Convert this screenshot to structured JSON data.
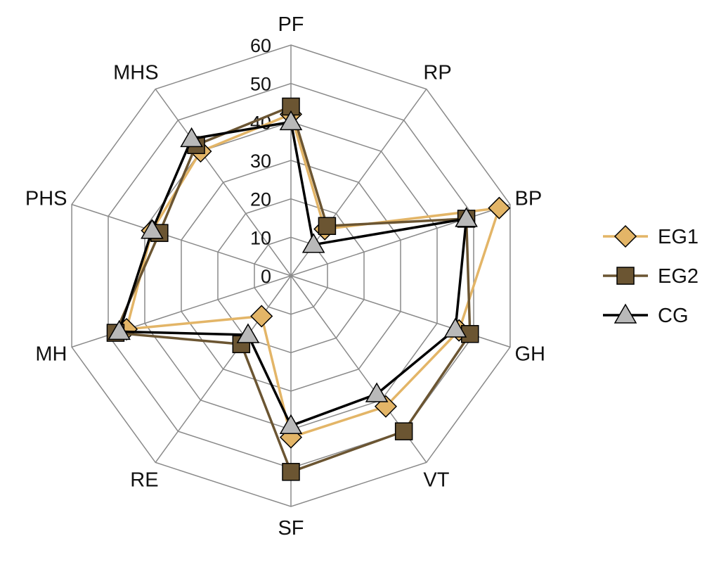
{
  "chart_data": {
    "type": "radar",
    "title": "",
    "categories": [
      "PF",
      "RP",
      "BP",
      "GH",
      "VT",
      "SF",
      "RE",
      "MH",
      "PHS",
      "MHS"
    ],
    "rlim": [
      0,
      60
    ],
    "ticks": [
      "0",
      "10",
      "20",
      "30",
      "40",
      "50",
      "60"
    ],
    "tick_values": [
      0,
      10,
      20,
      30,
      40,
      50,
      60
    ],
    "grid": true,
    "legend_position": "right",
    "series": [
      {
        "name": "EG1",
        "color": "#e3b567",
        "marker": "diamond",
        "values": [
          42,
          15,
          57,
          46,
          42,
          42,
          13,
          45,
          38,
          40
        ]
      },
      {
        "name": "EG2",
        "color": "#6b5532",
        "marker": "square",
        "values": [
          44,
          16,
          48,
          49,
          50,
          51,
          22,
          48,
          36,
          42
        ]
      },
      {
        "name": "CG",
        "color": "#000000",
        "fill": "#b9b9b9",
        "marker": "triangle",
        "values": [
          40,
          10,
          48,
          45,
          38,
          39,
          19,
          47,
          38,
          44
        ]
      }
    ]
  }
}
